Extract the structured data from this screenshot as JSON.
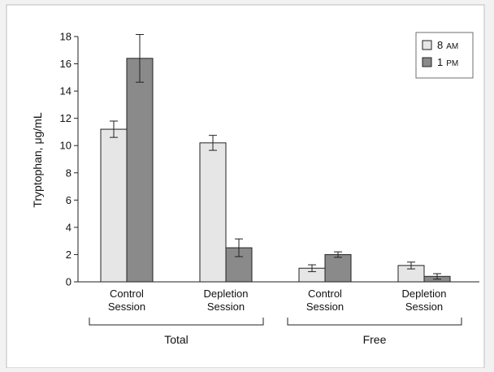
{
  "chart_data": {
    "type": "bar",
    "ylabel": "Tryptophan, μg/mL",
    "ylim": [
      0,
      18
    ],
    "yticks": [
      0,
      2,
      4,
      6,
      8,
      10,
      12,
      14,
      16,
      18
    ],
    "grid": false,
    "legend_position": "top-right",
    "categories": [
      "Control Session",
      "Depletion Session",
      "Control Session",
      "Depletion Session"
    ],
    "category_lines": [
      [
        "Control",
        "Session"
      ],
      [
        "Depletion",
        "Session"
      ],
      [
        "Control",
        "Session"
      ],
      [
        "Depletion",
        "Session"
      ]
    ],
    "groups": [
      {
        "label": "Total",
        "categories": [
          0,
          1
        ]
      },
      {
        "label": "Free",
        "categories": [
          2,
          3
        ]
      }
    ],
    "series": [
      {
        "name_main": "8",
        "name_suffix": "AM",
        "color": "#e6e6e6",
        "values": [
          11.2,
          10.2,
          1.0,
          1.2
        ],
        "errors": [
          0.6,
          0.55,
          0.25,
          0.25
        ]
      },
      {
        "name_main": "1",
        "name_suffix": "PM",
        "color": "#8a8a8a",
        "values": [
          16.4,
          2.5,
          2.0,
          0.4
        ],
        "errors": [
          1.75,
          0.65,
          0.2,
          0.2
        ]
      }
    ]
  }
}
